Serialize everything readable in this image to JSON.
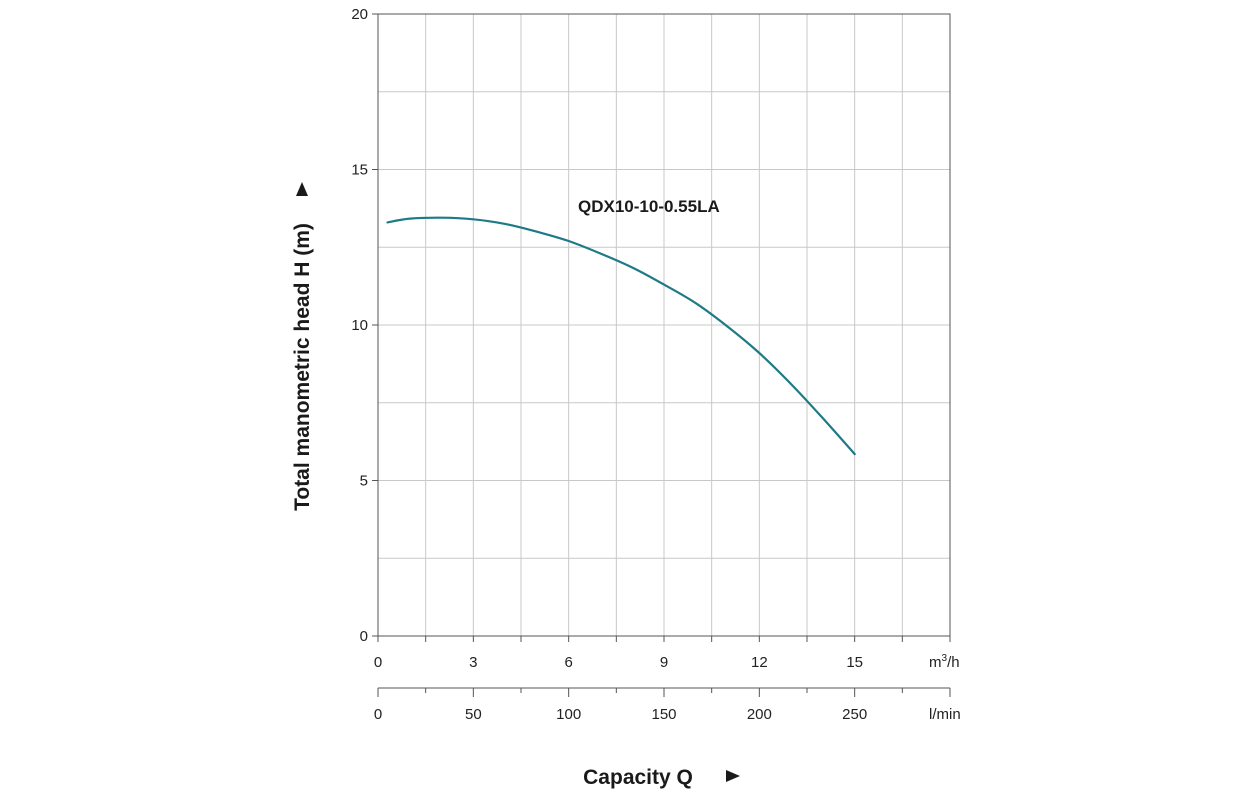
{
  "chart_data": {
    "type": "line",
    "series_label": "QDX10-10-0.55LA",
    "ylabel": "Total manometric head H (m)",
    "xlabel": "Capacity Q",
    "y_ticks": [
      0,
      5,
      10,
      15,
      20
    ],
    "ylim": [
      0,
      20
    ],
    "x_axis_primary": {
      "unit": "m³/h",
      "unit_base": "m",
      "unit_sup": "3",
      "unit_tail": "/h",
      "ticks": [
        0,
        3,
        6,
        9,
        12,
        15
      ],
      "xlim": [
        0,
        18
      ]
    },
    "x_axis_secondary": {
      "unit": "l/min",
      "ticks": [
        0,
        50,
        100,
        150,
        200,
        250
      ],
      "xlim": [
        0,
        300
      ]
    },
    "grid": true,
    "series": [
      {
        "name": "QDX10-10-0.55LA",
        "color": "#1e7a86",
        "x": [
          0.3,
          1.0,
          2.0,
          3.0,
          4.0,
          5.0,
          6.0,
          7.0,
          8.0,
          9.0,
          10.0,
          11.0,
          12.0,
          13.0,
          14.0,
          15.0
        ],
        "y": [
          13.3,
          13.42,
          13.45,
          13.4,
          13.25,
          13.0,
          12.7,
          12.3,
          11.85,
          11.3,
          10.7,
          9.95,
          9.1,
          8.1,
          7.0,
          5.85
        ]
      }
    ]
  }
}
